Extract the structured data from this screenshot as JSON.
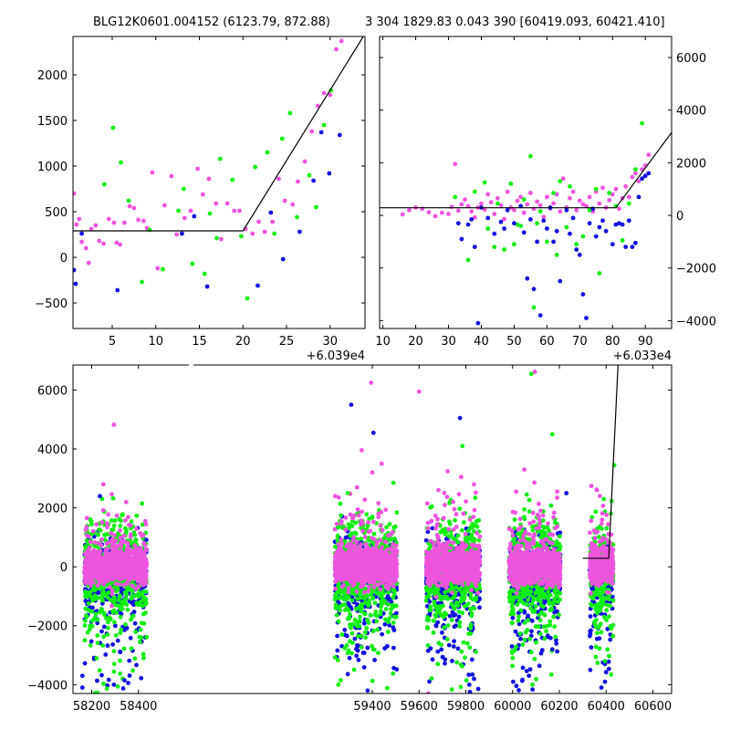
{
  "colors": {
    "magenta": "#ee55dd",
    "green": "#11ee11",
    "blue": "#1111dd",
    "line": "#000000"
  },
  "chart_data": [
    {
      "id": "top-left",
      "type": "scatter",
      "title": "BLG12K0601.004152 (6123.79, 872.88)",
      "xlabel": "",
      "ylabel": "",
      "x_offset_label": "+6.039e4",
      "xlim": [
        0.5,
        34
      ],
      "ylim": [
        -780,
        2420
      ],
      "xticks": [
        5,
        10,
        15,
        20,
        25,
        30
      ],
      "yticks": [
        -500,
        0,
        500,
        1000,
        1500,
        2000
      ],
      "y_axis_side": "left",
      "grid": false,
      "model_line": {
        "x": [
          0.5,
          20,
          34
        ],
        "y": [
          290,
          290,
          2450
        ]
      },
      "series": [
        {
          "color": "magenta",
          "x": [
            0.6,
            0.9,
            1.2,
            1.5,
            2.0,
            2.3,
            2.6,
            3.1,
            3.5,
            4.0,
            4.6,
            5.2,
            5.5,
            5.9,
            6.4,
            7.0,
            7.5,
            8.0,
            8.6,
            9.0,
            9.6,
            10.2,
            11.0,
            11.8,
            12.4,
            13.3,
            14.0,
            14.8,
            15.4,
            16.1,
            16.9,
            17.5,
            18.2,
            19.0,
            19.6,
            20.3,
            21.1,
            21.8,
            22.5,
            23.4,
            24.1,
            24.8,
            25.7,
            26.3,
            27.1,
            27.9,
            28.6,
            29.3,
            30.0,
            30.7,
            31.3
          ],
          "y": [
            700,
            360,
            420,
            170,
            100,
            -60,
            310,
            350,
            180,
            150,
            420,
            380,
            160,
            140,
            380,
            560,
            540,
            410,
            400,
            320,
            930,
            -120,
            570,
            890,
            250,
            430,
            510,
            970,
            690,
            860,
            590,
            200,
            590,
            510,
            510,
            310,
            260,
            390,
            280,
            390,
            860,
            620,
            580,
            830,
            1050,
            1380,
            1660,
            1800,
            1780,
            2280,
            2370
          ]
        },
        {
          "color": "green",
          "x": [
            4.1,
            5.1,
            6.0,
            6.9,
            8.4,
            9.3,
            10.8,
            12.6,
            13.2,
            14.2,
            15.6,
            16.2,
            17.0,
            17.4,
            18.8,
            19.8,
            20.5,
            21.4,
            22.8,
            23.6,
            24.5,
            25.4,
            26.2,
            27.6,
            28.4,
            29.3,
            30.1
          ],
          "y": [
            800,
            1420,
            1040,
            620,
            -270,
            300,
            -130,
            510,
            750,
            -70,
            -180,
            480,
            210,
            1080,
            850,
            230,
            -450,
            990,
            1150,
            260,
            1300,
            1580,
            440,
            900,
            550,
            1450,
            1830
          ]
        },
        {
          "color": "blue",
          "x": [
            0.6,
            0.8,
            1.5,
            5.6,
            13.0,
            14.4,
            15.9,
            21.7,
            23.2,
            24.6,
            26.5,
            28.1,
            29.0,
            29.9,
            31.1
          ],
          "y": [
            -140,
            -290,
            260,
            -360,
            260,
            450,
            -320,
            -310,
            490,
            -20,
            280,
            840,
            1370,
            920,
            1340
          ]
        }
      ]
    },
    {
      "id": "top-right",
      "type": "scatter",
      "title": "3 304 1829.83 0.043 390 [60419.093, 60421.410]",
      "xlabel": "",
      "ylabel": "",
      "x_offset_label": "+6.033e4",
      "xlim": [
        9,
        98
      ],
      "ylim": [
        -4300,
        6800
      ],
      "xticks": [
        10,
        20,
        30,
        40,
        50,
        60,
        70,
        80,
        90
      ],
      "yticks": [
        -4000,
        -2000,
        0,
        2000,
        4000,
        6000
      ],
      "y_axis_side": "right",
      "grid": false,
      "model_line": {
        "x": [
          9,
          81,
          98
        ],
        "y": [
          290,
          290,
          3150
        ]
      },
      "series": [
        {
          "color": "magenta",
          "x": [
            16,
            18,
            20,
            22,
            24,
            26,
            28,
            30,
            31,
            32,
            33,
            34,
            35,
            36,
            37,
            38,
            39,
            40,
            41,
            42,
            43,
            44,
            45,
            46,
            47,
            48,
            49,
            50,
            51,
            52,
            53,
            54,
            55,
            56,
            57,
            58,
            59,
            60,
            61,
            62,
            63,
            64,
            65,
            66,
            67,
            68,
            69,
            70,
            71,
            72,
            73,
            74,
            75,
            76,
            77,
            78,
            79,
            80,
            81,
            82,
            83,
            84,
            85,
            86,
            87,
            88,
            89,
            90,
            91
          ],
          "y": [
            40,
            200,
            300,
            250,
            120,
            -30,
            100,
            50,
            320,
            1950,
            180,
            420,
            600,
            350,
            150,
            -80,
            300,
            450,
            220,
            800,
            500,
            50,
            650,
            380,
            -140,
            900,
            300,
            200,
            550,
            700,
            100,
            420,
            850,
            250,
            520,
            380,
            -60,
            700,
            260,
            460,
            800,
            150,
            1400,
            300,
            650,
            900,
            200,
            560,
            420,
            350,
            700,
            150,
            900,
            450,
            1050,
            300,
            580,
            800,
            1000,
            250,
            650,
            1100,
            700,
            1450,
            1600,
            1300,
            1750,
            1900,
            2300
          ]
        },
        {
          "color": "green",
          "x": [
            32,
            36,
            38,
            41,
            42,
            44,
            45,
            47,
            49,
            50,
            51,
            52,
            53,
            55,
            56,
            57,
            58,
            60,
            62,
            63,
            64,
            66,
            67,
            69,
            71,
            73,
            75,
            76,
            79,
            81,
            83,
            85,
            87,
            89
          ],
          "y": [
            700,
            -1700,
            900,
            1250,
            -500,
            -1200,
            450,
            -1300,
            1200,
            -1100,
            -350,
            -400,
            600,
            2250,
            -3500,
            -300,
            150,
            -1000,
            850,
            -1500,
            1300,
            -450,
            1100,
            -1100,
            -800,
            200,
            1000,
            -2200,
            850,
            350,
            -950,
            450,
            1750,
            3500
          ]
        },
        {
          "color": "blue",
          "x": [
            33,
            34,
            36,
            37,
            38,
            39,
            40,
            42,
            44,
            46,
            47,
            48,
            50,
            52,
            53,
            54,
            55,
            56,
            57,
            58,
            59,
            60,
            61,
            62,
            63,
            64,
            66,
            67,
            68,
            69,
            70,
            71,
            72,
            73,
            74,
            75,
            76,
            77,
            78,
            80,
            81,
            82,
            83,
            84,
            85,
            86,
            87,
            88,
            89,
            90,
            91
          ],
          "y": [
            -300,
            -900,
            -350,
            -150,
            -1200,
            -4100,
            300,
            -100,
            -700,
            -250,
            -500,
            200,
            -300,
            350,
            -650,
            -2400,
            -150,
            -2800,
            -1000,
            -3800,
            -200,
            -500,
            300,
            -1000,
            -600,
            -2500,
            200,
            -700,
            -100,
            -1300,
            -1500,
            -3000,
            -3900,
            -300,
            250,
            -800,
            -450,
            -200,
            -600,
            -1100,
            -350,
            -300,
            -350,
            -1200,
            -200,
            -1200,
            -1050,
            700,
            1400,
            1500,
            1600
          ]
        }
      ]
    },
    {
      "id": "bottom",
      "type": "scatter",
      "title": "",
      "xlabel": "",
      "ylabel": "",
      "xlim": [
        58120,
        60680
      ],
      "ylim": [
        -4300,
        6850
      ],
      "xticks": [
        58200,
        58400,
        59400,
        59600,
        59800,
        60000,
        60200,
        60400,
        60600
      ],
      "yticks": [
        -4000,
        -2000,
        0,
        2000,
        4000,
        6000
      ],
      "y_axis_side": "left",
      "grid": false,
      "seasons": [
        [
          58170,
          58435
        ],
        [
          59240,
          59505
        ],
        [
          59630,
          59860
        ],
        [
          59985,
          60205
        ],
        [
          60330,
          60430
        ]
      ],
      "outliers": [
        {
          "color": "blue",
          "x": 58160,
          "y": -4100
        },
        {
          "color": "blue",
          "x": 58160,
          "y": -3700
        },
        {
          "color": "magenta",
          "x": 58295,
          "y": 4820
        },
        {
          "color": "green",
          "x": 58245,
          "y": 2300
        },
        {
          "color": "magenta",
          "x": 58250,
          "y": 2800
        },
        {
          "color": "blue",
          "x": 58235,
          "y": 2400
        },
        {
          "color": "blue",
          "x": 58340,
          "y": -3850
        },
        {
          "color": "blue",
          "x": 58295,
          "y": -4000
        },
        {
          "color": "blue",
          "x": 59310,
          "y": 5500
        },
        {
          "color": "magenta",
          "x": 59395,
          "y": 6250
        },
        {
          "color": "blue",
          "x": 59405,
          "y": 4550
        },
        {
          "color": "magenta",
          "x": 59400,
          "y": 3200
        },
        {
          "color": "green",
          "x": 59490,
          "y": 2850
        },
        {
          "color": "magenta",
          "x": 59440,
          "y": 3500
        },
        {
          "color": "green",
          "x": 59255,
          "y": -4000
        },
        {
          "color": "green",
          "x": 59265,
          "y": -3850
        },
        {
          "color": "blue",
          "x": 59380,
          "y": -4200
        },
        {
          "color": "green",
          "x": 59295,
          "y": 2500
        },
        {
          "color": "magenta",
          "x": 59335,
          "y": 2700
        },
        {
          "color": "magenta",
          "x": 59600,
          "y": 5950
        },
        {
          "color": "blue",
          "x": 59775,
          "y": 5050
        },
        {
          "color": "green",
          "x": 59785,
          "y": 4100
        },
        {
          "color": "magenta",
          "x": 59780,
          "y": 3050
        },
        {
          "color": "magenta",
          "x": 59710,
          "y": 2100
        },
        {
          "color": "green",
          "x": 59655,
          "y": 2050
        },
        {
          "color": "magenta",
          "x": 59835,
          "y": 2800
        },
        {
          "color": "magenta",
          "x": 59640,
          "y": -4300
        },
        {
          "color": "green",
          "x": 59680,
          "y": -3300
        },
        {
          "color": "blue",
          "x": 59815,
          "y": -4000
        },
        {
          "color": "green",
          "x": 60080,
          "y": 6550
        },
        {
          "color": "magenta",
          "x": 60095,
          "y": 6620
        },
        {
          "color": "green",
          "x": 60170,
          "y": 4500
        },
        {
          "color": "magenta",
          "x": 60050,
          "y": 3300
        },
        {
          "color": "magenta",
          "x": 60120,
          "y": 1900
        },
        {
          "color": "blue",
          "x": 60230,
          "y": 2500
        },
        {
          "color": "green",
          "x": 60085,
          "y": -4000
        },
        {
          "color": "blue",
          "x": 60070,
          "y": -3700
        },
        {
          "color": "blue",
          "x": 60170,
          "y": -2800
        },
        {
          "color": "magenta",
          "x": 60015,
          "y": 2550
        },
        {
          "color": "blue",
          "x": 60380,
          "y": -4100
        },
        {
          "color": "green",
          "x": 60395,
          "y": -3200
        },
        {
          "color": "blue",
          "x": 60395,
          "y": -3900
        },
        {
          "color": "green",
          "x": 60435,
          "y": 3450
        },
        {
          "color": "green",
          "x": 60390,
          "y": 2300
        }
      ],
      "model_line": {
        "x": [
          60300,
          60411,
          60451
        ],
        "y": [
          290,
          290,
          6850
        ]
      }
    }
  ]
}
